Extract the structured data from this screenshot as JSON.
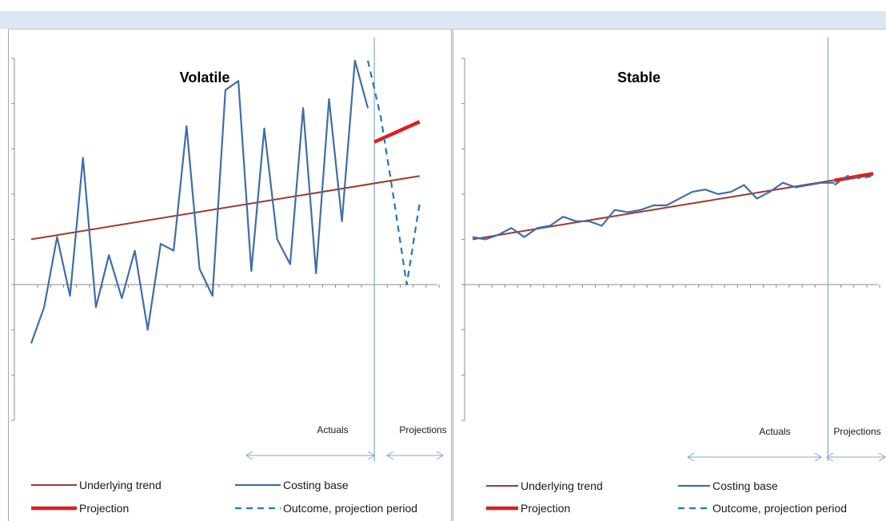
{
  "colors": {
    "trend": "#a0392d",
    "costing": "#3f6ea8",
    "projection": "#e41c1c",
    "outcome": "#1f77c4",
    "divider": "#7fa7d6",
    "arrow": "#7fa7d6",
    "axis": "#8c8c8c"
  },
  "legend": {
    "trend": "Underlying trend",
    "costing": "Costing base",
    "projection": "Projection",
    "outcome": "Outcome, projection period"
  },
  "chart_data": [
    {
      "type": "line",
      "title": "Volatile",
      "xlabel": "",
      "ylabel": "",
      "ylim": [
        -3.0,
        5.0
      ],
      "x_count": 32,
      "divider_x": 26.5,
      "period_labels": {
        "actuals": "Actuals",
        "projections": "Projections"
      },
      "series": [
        {
          "name": "Underlying trend",
          "style": "trend",
          "x": [
            0,
            30
          ],
          "y": [
            1.0,
            2.4
          ]
        },
        {
          "name": "Costing base",
          "style": "costing",
          "x": [
            0,
            1,
            2,
            3,
            4,
            5,
            6,
            7,
            8,
            9,
            10,
            11,
            12,
            13,
            14,
            15,
            16,
            17,
            18,
            19,
            20,
            21,
            22,
            23,
            24,
            25,
            26
          ],
          "y": [
            -1.3,
            -0.5,
            1.05,
            -0.25,
            2.8,
            -0.5,
            0.65,
            -0.3,
            0.75,
            -1.0,
            0.9,
            0.75,
            3.5,
            0.35,
            -0.25,
            4.3,
            4.5,
            0.3,
            3.45,
            1.0,
            0.45,
            3.9,
            0.25,
            4.1,
            1.4,
            4.95,
            3.9
          ]
        },
        {
          "name": "Projection",
          "style": "projection",
          "x": [
            26.5,
            30
          ],
          "y": [
            3.15,
            3.6
          ]
        },
        {
          "name": "Outcome, projection period",
          "style": "outcome",
          "x": [
            26,
            27,
            28,
            29,
            30
          ],
          "y": [
            4.95,
            3.7,
            1.9,
            0.0,
            1.8
          ]
        }
      ]
    },
    {
      "type": "line",
      "title": "Stable",
      "xlabel": "",
      "ylabel": "",
      "ylim": [
        -3.0,
        5.0
      ],
      "x_count": 32,
      "divider_x": 27.5,
      "period_labels": {
        "actuals": "Actuals",
        "projections": "Projections"
      },
      "series": [
        {
          "name": "Underlying trend",
          "style": "trend",
          "x": [
            0,
            31
          ],
          "y": [
            1.0,
            2.45
          ]
        },
        {
          "name": "Costing base",
          "style": "costing",
          "x": [
            0,
            1,
            2,
            3,
            4,
            5,
            6,
            7,
            8,
            9,
            10,
            11,
            12,
            13,
            14,
            15,
            16,
            17,
            18,
            19,
            20,
            21,
            22,
            23,
            24,
            25,
            26,
            27,
            28
          ],
          "y": [
            1.05,
            1.0,
            1.1,
            1.25,
            1.05,
            1.25,
            1.3,
            1.5,
            1.4,
            1.4,
            1.3,
            1.65,
            1.6,
            1.65,
            1.75,
            1.75,
            1.9,
            2.05,
            2.1,
            2.0,
            2.05,
            2.2,
            1.9,
            2.05,
            2.25,
            2.15,
            2.2,
            2.25,
            2.25
          ]
        },
        {
          "name": "Projection",
          "style": "projection",
          "x": [
            28,
            31
          ],
          "y": [
            2.3,
            2.45
          ]
        },
        {
          "name": "Outcome, projection period",
          "style": "outcome",
          "x": [
            28,
            29,
            30,
            31
          ],
          "y": [
            2.2,
            2.4,
            2.35,
            2.4
          ]
        }
      ]
    }
  ]
}
